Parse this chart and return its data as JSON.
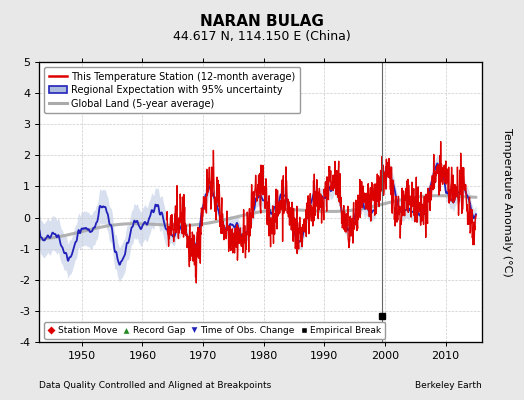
{
  "title": "NARAN BULAG",
  "subtitle": "44.617 N, 114.150 E (China)",
  "ylabel": "Temperature Anomaly (°C)",
  "xlabel_left": "Data Quality Controlled and Aligned at Breakpoints",
  "xlabel_right": "Berkeley Earth",
  "ylim": [
    -4,
    5
  ],
  "xlim": [
    1943,
    2016
  ],
  "xticks": [
    1950,
    1960,
    1970,
    1980,
    1990,
    2000,
    2010
  ],
  "yticks": [
    -4,
    -3,
    -2,
    -1,
    0,
    1,
    2,
    3,
    4,
    5
  ],
  "bg_color": "#e8e8e8",
  "plot_bg_color": "#ffffff",
  "grid_color": "#cccccc",
  "empirical_break_x": 1999.5,
  "empirical_break_y": -3.15,
  "vertical_line_x": 1999.5,
  "red_color": "#dd0000",
  "blue_color": "#2222bb",
  "blue_fill_color": "#aabbdd",
  "gray_color": "#aaaaaa",
  "title_fontsize": 11,
  "subtitle_fontsize": 9,
  "tick_fontsize": 8,
  "ylabel_fontsize": 8
}
